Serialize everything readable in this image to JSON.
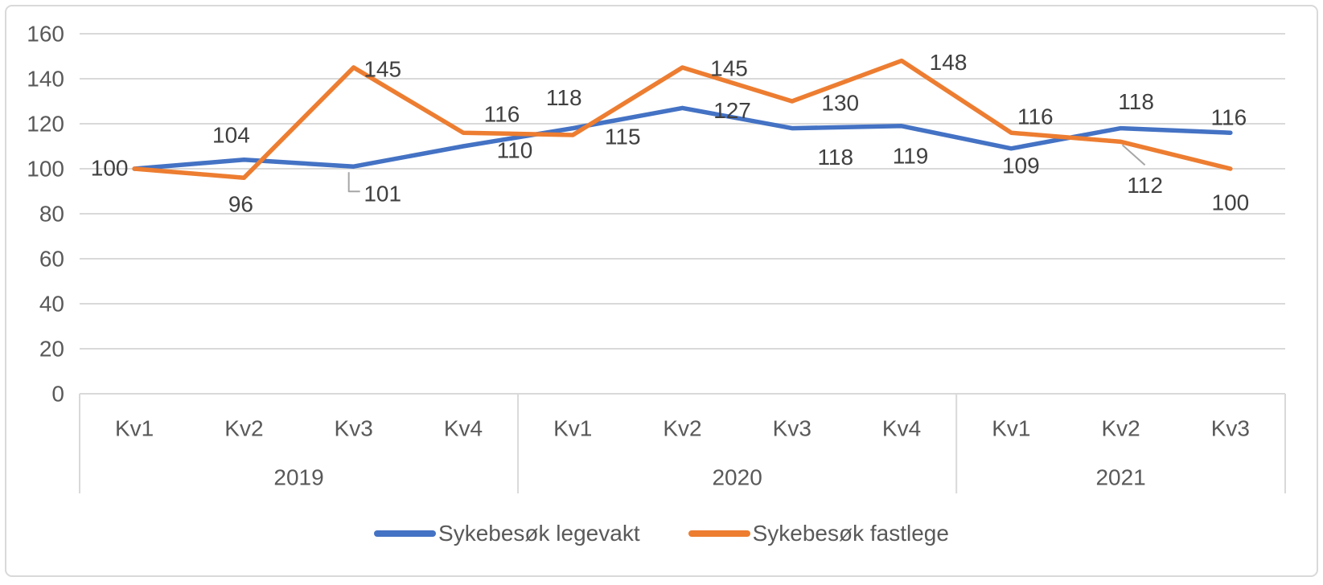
{
  "legend": {
    "items": [
      {
        "label": "Sykebesøk legevakt",
        "color": "#4472C4"
      },
      {
        "label": "Sykebesøk fastlege",
        "color": "#ED7D31"
      }
    ]
  },
  "chart_data": {
    "type": "line",
    "title": "",
    "categories": [
      "Kv1",
      "Kv2",
      "Kv3",
      "Kv4",
      "Kv1",
      "Kv2",
      "Kv3",
      "Kv4",
      "Kv1",
      "Kv2",
      "Kv3"
    ],
    "year_groups": [
      {
        "label": "2019",
        "count": 4
      },
      {
        "label": "2020",
        "count": 4
      },
      {
        "label": "2021",
        "count": 3
      }
    ],
    "series": [
      {
        "name": "Sykebesøk legevakt",
        "color": "#4472C4",
        "values": [
          100,
          104,
          101,
          110,
          118,
          127,
          118,
          119,
          109,
          118,
          116
        ],
        "labels": [
          {
            "dx": -31,
            "dy": -1
          },
          {
            "dx": -16,
            "dy": -31
          },
          {
            "dx": 36,
            "dy": 34,
            "leader": [
              [
                -6,
                7
              ],
              [
                -6,
                31
              ],
              [
                8,
                31
              ]
            ]
          },
          {
            "dx": 64,
            "dy": 5
          },
          {
            "dx": -11,
            "dy": -38
          },
          {
            "dx": 62,
            "dy": 3
          },
          {
            "dx": 54,
            "dy": 36
          },
          {
            "dx": 11,
            "dy": 37
          },
          {
            "dx": 12,
            "dy": 21
          },
          {
            "dx": 19,
            "dy": -33
          },
          {
            "dx": -2,
            "dy": -19
          }
        ]
      },
      {
        "name": "Sykebesøk fastlege",
        "color": "#ED7D31",
        "values": [
          100,
          96,
          145,
          116,
          115,
          145,
          130,
          148,
          116,
          112,
          100
        ],
        "labels": [
          null,
          {
            "dx": -4,
            "dy": 33
          },
          {
            "dx": 36,
            "dy": 2
          },
          {
            "dx": 48,
            "dy": -23
          },
          {
            "dx": 62,
            "dy": 2
          },
          {
            "dx": 58,
            "dy": 1
          },
          {
            "dx": 60,
            "dy": 2
          },
          {
            "dx": 58,
            "dy": 2
          },
          {
            "dx": 30,
            "dy": -20
          },
          {
            "dx": 30,
            "dy": 54,
            "leader": [
              [
                2,
                4
              ],
              [
                30,
                29
              ]
            ]
          },
          {
            "dx": 0,
            "dy": 42
          }
        ]
      }
    ],
    "ylim": [
      0,
      160
    ],
    "ytick_step": 20,
    "grid": true,
    "legend_position": "bottom",
    "colors": {
      "gridline": "#D9D9D9",
      "axis_text": "#595959",
      "data_label": "#404040",
      "leader": "#A6A6A6",
      "border": "#D9D9D9"
    }
  }
}
